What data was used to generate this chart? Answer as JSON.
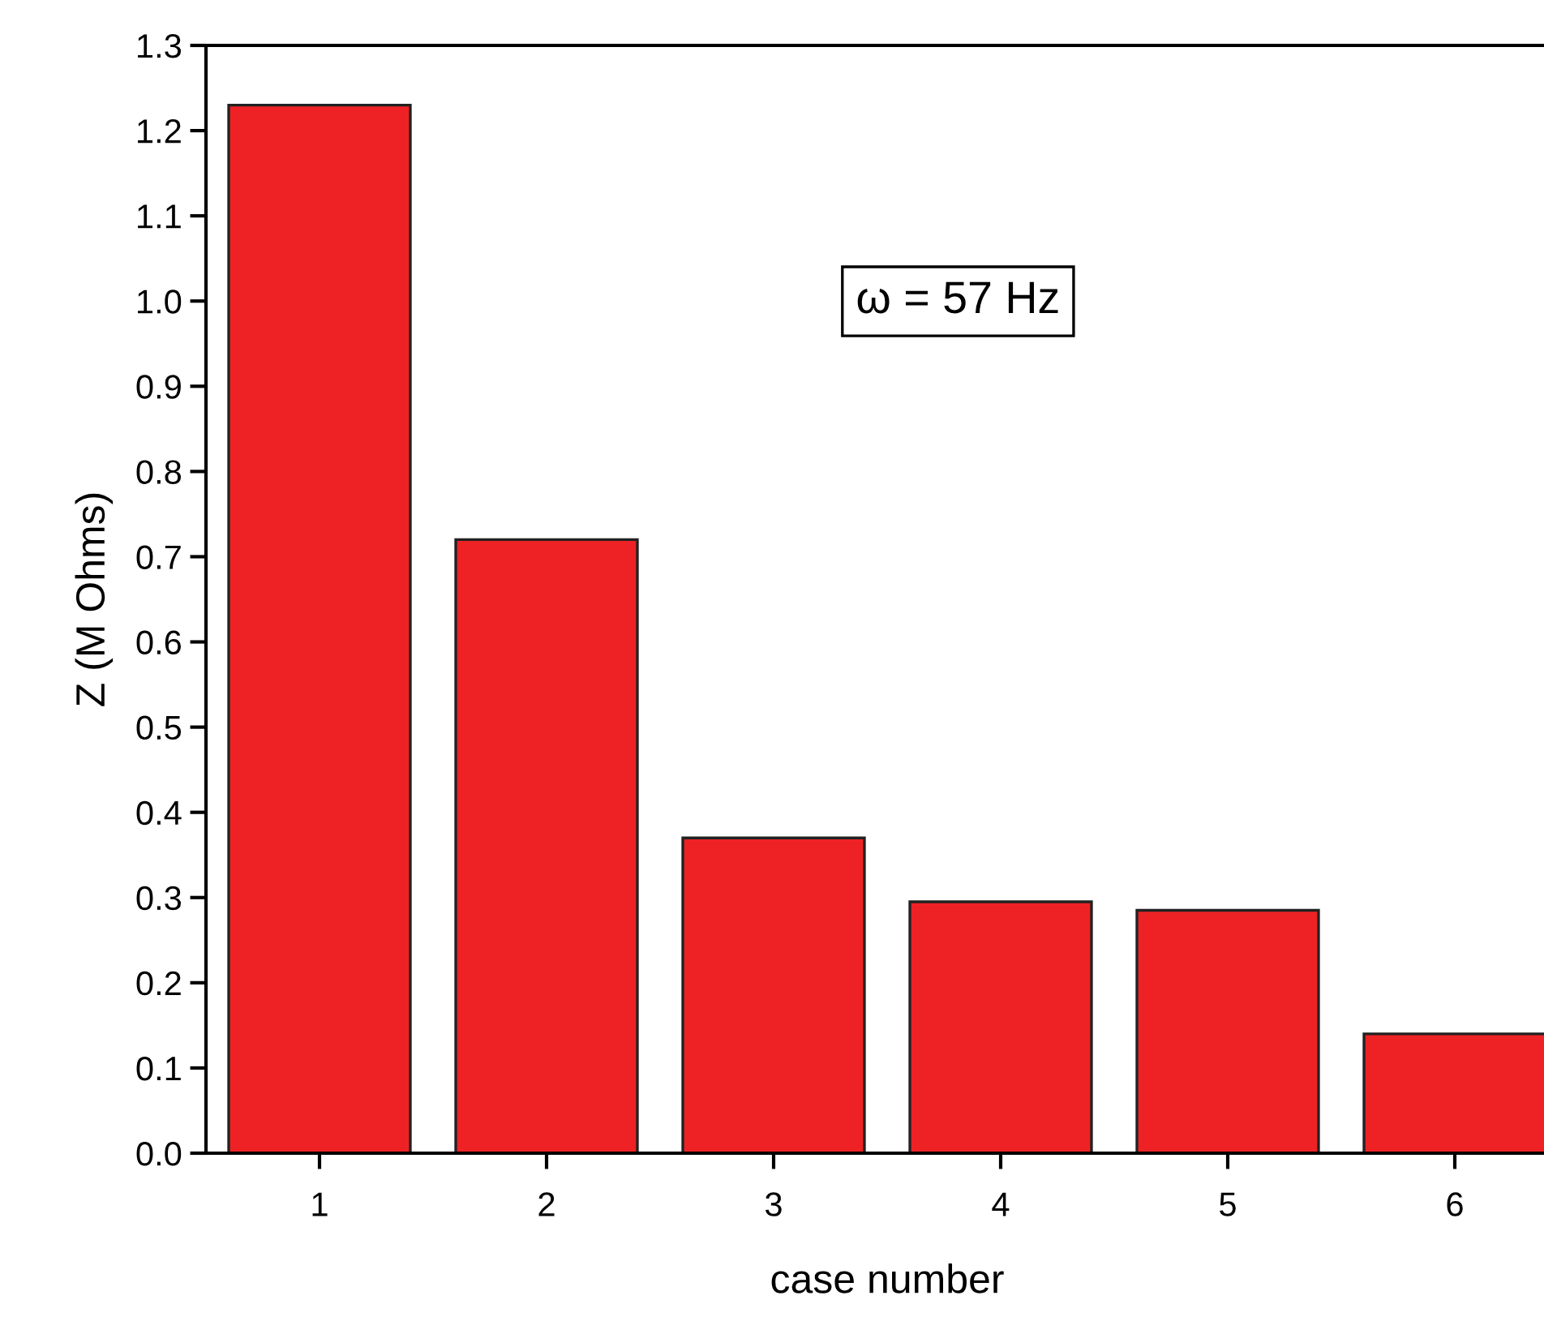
{
  "chart_data": {
    "type": "bar",
    "xlabel": "case number",
    "ylabel": "Z (M Ohms)",
    "categories": [
      "1",
      "2",
      "3",
      "4",
      "5",
      "6"
    ],
    "values": [
      1.23,
      0.72,
      0.37,
      0.295,
      0.285,
      0.14
    ],
    "color": "#ee2224",
    "ylim": [
      0,
      1.3
    ],
    "yticks": [
      {
        "value": 0,
        "label": "0.0"
      },
      {
        "value": 0.1,
        "label": "0.1"
      },
      {
        "value": 0.2,
        "label": "0.2"
      },
      {
        "value": 0.3,
        "label": "0.3"
      },
      {
        "value": 0.4,
        "label": "0.4"
      },
      {
        "value": 0.5,
        "label": "0.5"
      },
      {
        "value": 0.6,
        "label": "0.6"
      },
      {
        "value": 0.7,
        "label": "0.7"
      },
      {
        "value": 0.8,
        "label": "0.8"
      },
      {
        "value": 0.9,
        "label": "0.9"
      },
      {
        "value": 1.0,
        "label": "1.0"
      },
      {
        "value": 1.1,
        "label": "1.1"
      },
      {
        "value": 1.2,
        "label": "1.2"
      },
      {
        "value": 1.3,
        "label": "1.3"
      }
    ],
    "annotations": [
      "ω = 57 Hz"
    ],
    "grid": false,
    "legend": false
  }
}
